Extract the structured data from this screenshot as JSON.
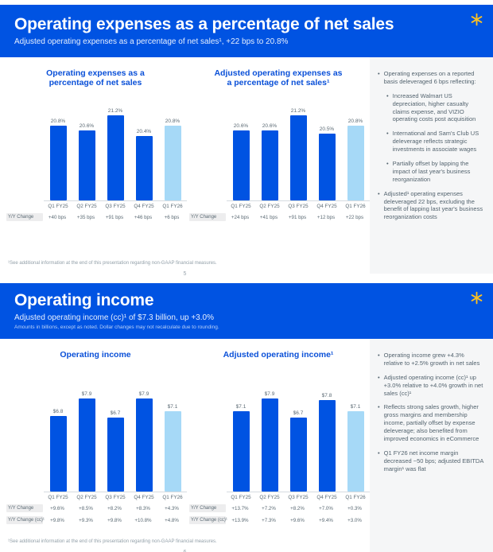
{
  "brand": {
    "header_blue": "#0053e2",
    "bar_blue": "#0053e2",
    "bar_highlight_blue": "#a6d9f7",
    "spark_yellow": "#ffc220",
    "spark_icon": "walmart-spark"
  },
  "slides": [
    {
      "title": "Operating expenses as a percentage of net sales",
      "subtitle": "Adjusted operating expenses as a percentage of net sales¹, +22 bps to 20.8%",
      "footnote": "¹See additional information at the end of this presentation regarding non-GAAP financial measures.",
      "page_number": "5",
      "bullets": [
        {
          "text": "Operating expenses on a reported basis deleveraged 6 bps reflecting:",
          "subs": [
            "Increased Walmart US depreciation, higher casualty claims expense, and VIZIO operating costs post acquisition",
            "International and Sam's Club US deleverage reflects strategic investments in associate wages",
            "Partially offset by lapping the impact of last year's business reorganization"
          ]
        },
        {
          "text": "Adjusted¹ operating expenses deleveraged 22 bps, excluding the benefit of lapping last year's business reorganization costs",
          "subs": []
        }
      ]
    },
    {
      "title": "Operating income",
      "subtitle": "Adjusted operating income (cc)¹ of $7.3 billion, up +3.0%",
      "fineprint": "Amounts in billions, except as noted. Dollar changes may not recalculate due to rounding.",
      "footnote": "¹See additional information at the end of this presentation regarding non-GAAP financial measures.",
      "page_number": "6",
      "bullets": [
        {
          "text": "Operating income grew +4.3% relative to +2.5% growth in net sales",
          "subs": []
        },
        {
          "text": "Adjusted operating income (cc)¹ up +3.0% relative to +4.0% growth in net sales (cc)¹",
          "subs": []
        },
        {
          "text": "Reflects strong sales growth, higher gross margins and membership income, partially offset by expense deleverage; also benefited from improved economics in eCommerce",
          "subs": []
        },
        {
          "text": "Q1 FY26 net income margin decreased ~50 bps; adjusted EBITDA margin¹ was flat",
          "subs": []
        }
      ]
    }
  ],
  "chart_data": [
    {
      "type": "bar",
      "title": "Operating expenses as a percentage of net sales",
      "title_lines": [
        "Operating expenses as a",
        "percentage of net sales"
      ],
      "categories": [
        "Q1 FY25",
        "Q2 FY25",
        "Q3 FY25",
        "Q4 FY25",
        "Q1 FY26"
      ],
      "values": [
        20.8,
        20.6,
        21.2,
        20.4,
        20.8
      ],
      "value_labels": [
        "20.8%",
        "20.6%",
        "21.2%",
        "20.4%",
        "20.8%"
      ],
      "highlight_last": true,
      "ylim": [
        17.9,
        21.6
      ],
      "ylabel": "",
      "xlabel": "",
      "grid": false,
      "legend": "none",
      "rows": [
        {
          "label": "Y/Y Change",
          "values": [
            "+40 bps",
            "+35 bps",
            "+91 bps",
            "+46 bps",
            "+6 bps"
          ]
        }
      ]
    },
    {
      "type": "bar",
      "title": "Adjusted operating expenses as a percentage of net sales¹",
      "title_lines": [
        "Adjusted operating expenses as",
        "a percentage of net sales¹"
      ],
      "categories": [
        "Q1 FY25",
        "Q2 FY25",
        "Q3 FY25",
        "Q4 FY25",
        "Q1 FY26"
      ],
      "values": [
        20.6,
        20.6,
        21.2,
        20.5,
        20.8
      ],
      "value_labels": [
        "20.6%",
        "20.6%",
        "21.2%",
        "20.5%",
        "20.8%"
      ],
      "highlight_last": true,
      "ylim": [
        17.9,
        21.6
      ],
      "ylabel": "",
      "xlabel": "",
      "grid": false,
      "legend": "none",
      "rows": [
        {
          "label": "Y/Y Change",
          "values": [
            "+24 bps",
            "+41 bps",
            "+91 bps",
            "+12 bps",
            "+22 bps"
          ]
        }
      ]
    },
    {
      "type": "bar",
      "title": "Operating income",
      "title_lines": [
        "Operating income"
      ],
      "categories": [
        "Q1 FY25",
        "Q2 FY25",
        "Q3 FY25",
        "Q4 FY25",
        "Q1 FY26"
      ],
      "values": [
        6.8,
        7.9,
        6.7,
        7.9,
        7.1
      ],
      "value_labels": [
        "$6.8",
        "$7.9",
        "$6.7",
        "$7.9",
        "$7.1"
      ],
      "highlight_last": true,
      "ylim": [
        2.2,
        9.0
      ],
      "ylabel": "",
      "xlabel": "",
      "grid": false,
      "legend": "none",
      "rows": [
        {
          "label": "Y/Y Change",
          "values": [
            "+9.6%",
            "+8.5%",
            "+8.2%",
            "+8.3%",
            "+4.3%"
          ]
        },
        {
          "label": "Y/Y Change (cc)¹",
          "values": [
            "+9.8%",
            "+9.3%",
            "+9.8%",
            "+10.8%",
            "+4.8%"
          ]
        }
      ]
    },
    {
      "type": "bar",
      "title": "Adjusted operating income¹",
      "title_lines": [
        "Adjusted operating income¹"
      ],
      "categories": [
        "Q1 FY25",
        "Q2 FY25",
        "Q3 FY25",
        "Q4 FY25",
        "Q1 FY26"
      ],
      "values": [
        7.1,
        7.9,
        6.7,
        7.8,
        7.1
      ],
      "value_labels": [
        "$7.1",
        "$7.9",
        "$6.7",
        "$7.8",
        "$7.1"
      ],
      "highlight_last": true,
      "ylim": [
        2.2,
        9.0
      ],
      "ylabel": "",
      "xlabel": "",
      "grid": false,
      "legend": "none",
      "rows": [
        {
          "label": "Y/Y Change",
          "values": [
            "+13.7%",
            "+7.2%",
            "+8.2%",
            "+7.0%",
            "+0.3%"
          ]
        },
        {
          "label": "Y/Y Change (cc)¹",
          "values": [
            "+13.9%",
            "+7.3%",
            "+9.6%",
            "+9.4%",
            "+3.0%"
          ]
        }
      ]
    }
  ]
}
